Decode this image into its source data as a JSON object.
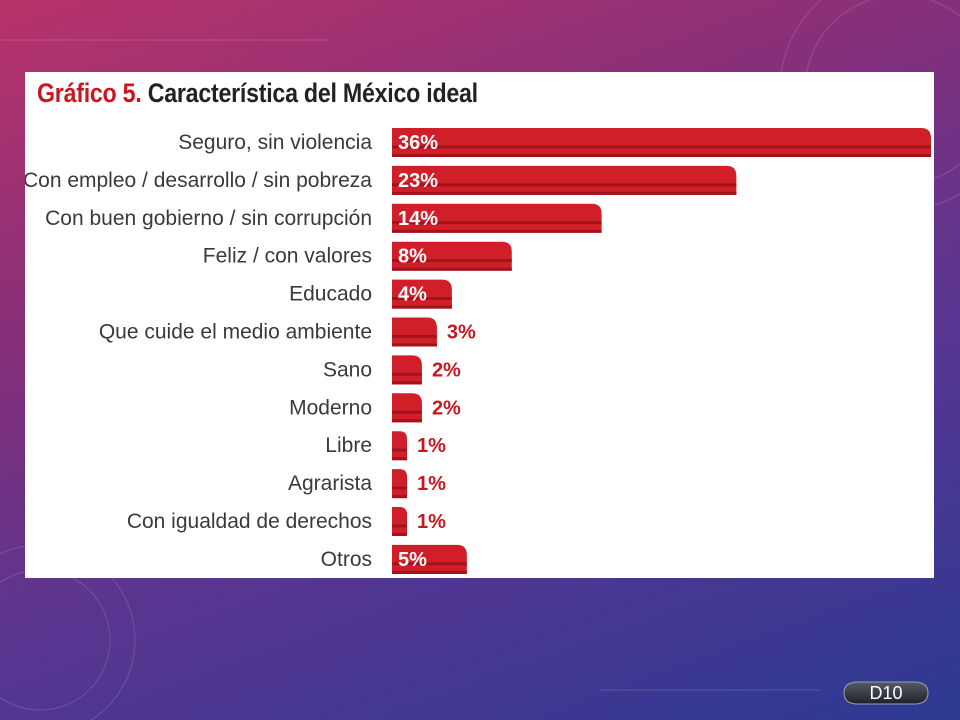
{
  "slide": {
    "badge_label": "D10"
  },
  "chart_data": {
    "type": "bar",
    "orientation": "horizontal",
    "title_prefix": "Gráfico 5.",
    "title": "Característica del México ideal",
    "categories": [
      "Seguro, sin violencia",
      "Con empleo / desarrollo / sin pobreza",
      "Con buen gobierno / sin corrupción",
      "Feliz / con valores",
      "Educado",
      "Que cuide el medio ambiente",
      "Sano",
      "Moderno",
      "Libre",
      "Agrarista",
      "Con igualdad de derechos",
      "Otros"
    ],
    "values": [
      36,
      23,
      14,
      8,
      4,
      3,
      2,
      2,
      1,
      1,
      1,
      5
    ],
    "value_labels": [
      "36%",
      "23%",
      "14%",
      "8%",
      "4%",
      "3%",
      "2%",
      "2%",
      "1%",
      "1%",
      "1%",
      "5%"
    ],
    "xlim": [
      0,
      36
    ],
    "grid": false,
    "legend": "none",
    "colors": {
      "bar": "#d11f2a",
      "bar_dark": "#a3121b",
      "title_prefix": "#c8171f",
      "outside_label": "#c8171f"
    }
  }
}
